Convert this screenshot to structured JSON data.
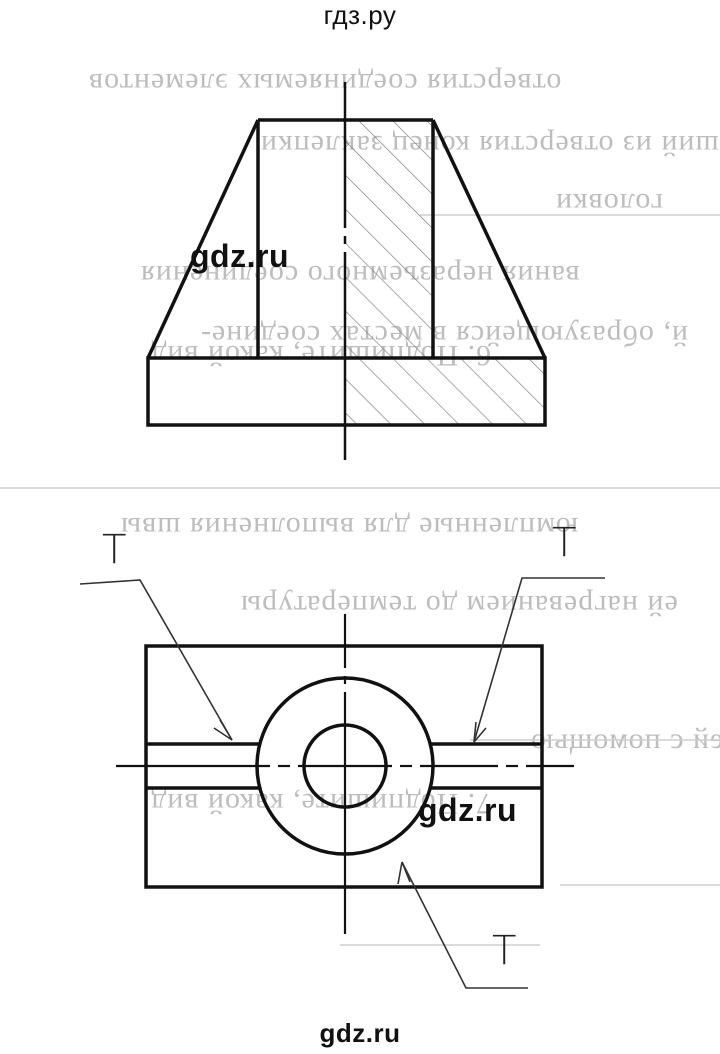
{
  "watermarks": {
    "top": "гдз.ру",
    "mid1": "gdz.ru",
    "mid2": "gdz.ru",
    "bottom": "gdz.ru"
  },
  "bleed_through_lines": [
    "отверстия соединяемых элементов",
    "ший из отверстия конец заклепки",
    "головки",
    "вания неразъемного соединения",
    "й, образующейся в местах соедине-",
    "6. Подпишите, какой вид",
    "юмпленные для выполнения швы",
    "ей нагреванием до температуры",
    "алей с помощью",
    "7. Подпишите, какой вид"
  ],
  "labels": {
    "t_left": "Т",
    "t_right": "Т",
    "t_bottom": "Т"
  },
  "colors": {
    "ink": "#111111",
    "ghost": "#bdbdbd",
    "background": "#ffffff"
  }
}
